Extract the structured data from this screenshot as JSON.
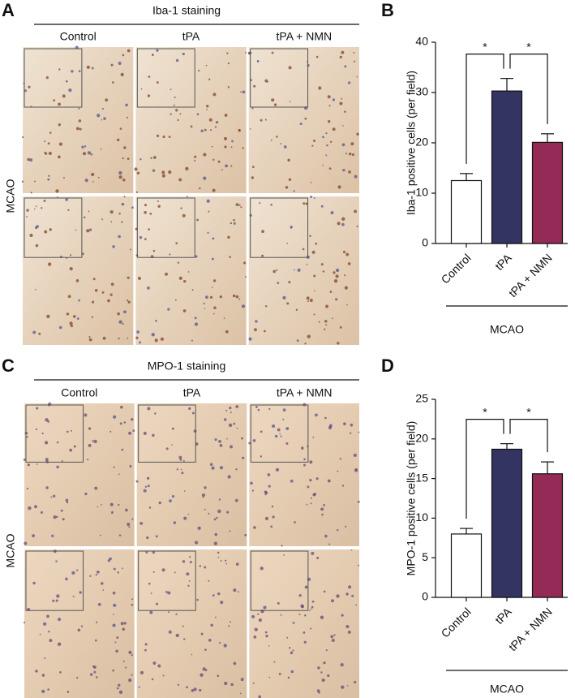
{
  "panels": [
    {
      "label": "A",
      "title": "Iba-1 staining",
      "columns": [
        "Control",
        "tPA",
        "tPA + NMN"
      ],
      "row_label": "MCAO"
    },
    {
      "label": "C",
      "title": "MPO-1 staining",
      "columns": [
        "Control",
        "tPA",
        "tPA + NMN"
      ],
      "row_label": "MCAO"
    }
  ],
  "chart_data": [
    {
      "type": "bar",
      "panel_label": "B",
      "ylabel": "Iba-1 positive cells (per field)",
      "categories": [
        "Control",
        "tPA",
        "tPA + NMN"
      ],
      "values": [
        12.5,
        30.3,
        20.1
      ],
      "errors": [
        1.4,
        2.5,
        1.7
      ],
      "colors": [
        "#ffffff",
        "#343463",
        "#942b56"
      ],
      "ylim": [
        0,
        40
      ],
      "yticks": [
        0,
        10,
        20,
        30,
        40
      ],
      "group_label": "MCAO",
      "significance": [
        {
          "from": 0,
          "to": 1,
          "label": "*"
        },
        {
          "from": 1,
          "to": 2,
          "label": "*"
        }
      ]
    },
    {
      "type": "bar",
      "panel_label": "D",
      "ylabel": "MPO-1 positive cells (per field)",
      "categories": [
        "Control",
        "tPA",
        "tPA + NMN"
      ],
      "values": [
        8.0,
        18.7,
        15.6
      ],
      "errors": [
        0.7,
        0.7,
        1.5
      ],
      "colors": [
        "#ffffff",
        "#343463",
        "#942b56"
      ],
      "ylim": [
        0,
        25
      ],
      "yticks": [
        0,
        5,
        10,
        15,
        20,
        25
      ],
      "group_label": "MCAO",
      "significance": [
        {
          "from": 0,
          "to": 1,
          "label": "*"
        },
        {
          "from": 1,
          "to": 2,
          "label": "*"
        }
      ]
    }
  ]
}
